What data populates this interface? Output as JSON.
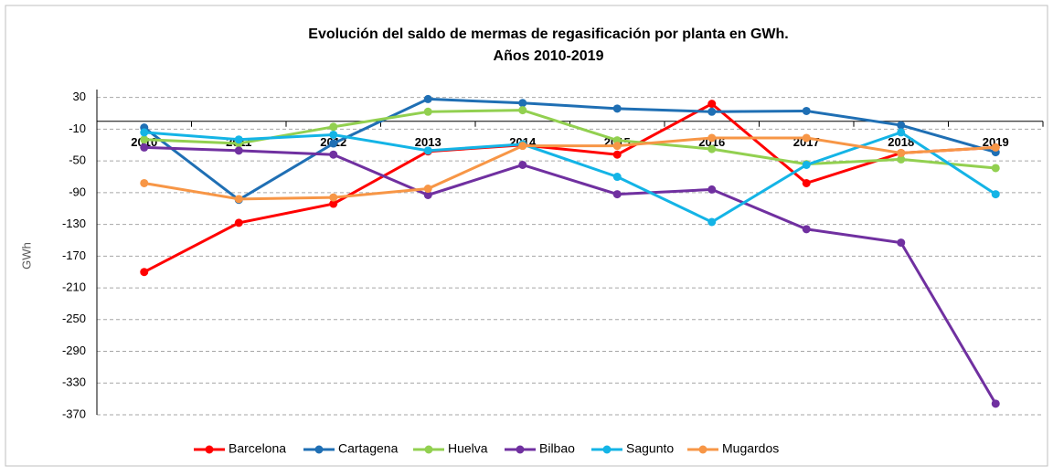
{
  "chart_data": {
    "type": "line",
    "title": "Evolución del saldo de mermas de regasificación por planta en GWh.",
    "subtitle": "Años 2010-2019",
    "y_label": "GWh",
    "categories": [
      "2010",
      "2011",
      "2012",
      "2013",
      "2014",
      "2015",
      "2016",
      "2017",
      "2018",
      "2019"
    ],
    "series": [
      {
        "name": "Barcelona",
        "color": "#ff0000",
        "values": [
          -190,
          -128,
          -104,
          -38,
          -30,
          -42,
          22,
          -78,
          -40,
          -33
        ]
      },
      {
        "name": "Cartagena",
        "color": "#1f6fb4",
        "values": [
          -8,
          -99,
          -28,
          28,
          23,
          16,
          12,
          13,
          -5,
          -39
        ]
      },
      {
        "name": "Huelva",
        "color": "#92d050",
        "values": [
          -23,
          -28,
          -7,
          12,
          14,
          -24,
          -35,
          -54,
          -48,
          -59
        ]
      },
      {
        "name": "Bilbao",
        "color": "#7030a0",
        "values": [
          -33,
          -37,
          -42,
          -93,
          -55,
          -92,
          -86,
          -136,
          -153,
          -356
        ]
      },
      {
        "name": "Sagunto",
        "color": "#14b4e6",
        "values": [
          -14,
          -23,
          -17,
          -37,
          -29,
          -70,
          -127,
          -55,
          -14,
          -92
        ]
      },
      {
        "name": "Mugardos",
        "color": "#f79646",
        "values": [
          -78,
          -98,
          -96,
          -85,
          -31,
          -31,
          -21,
          -21,
          -40,
          -33
        ]
      }
    ],
    "ylim": [
      -370,
      40
    ],
    "yticks": [
      30,
      -10,
      -50,
      -90,
      -130,
      -170,
      -210,
      -250,
      -290,
      -330,
      -370
    ],
    "grid": true,
    "legend": "bottom"
  }
}
